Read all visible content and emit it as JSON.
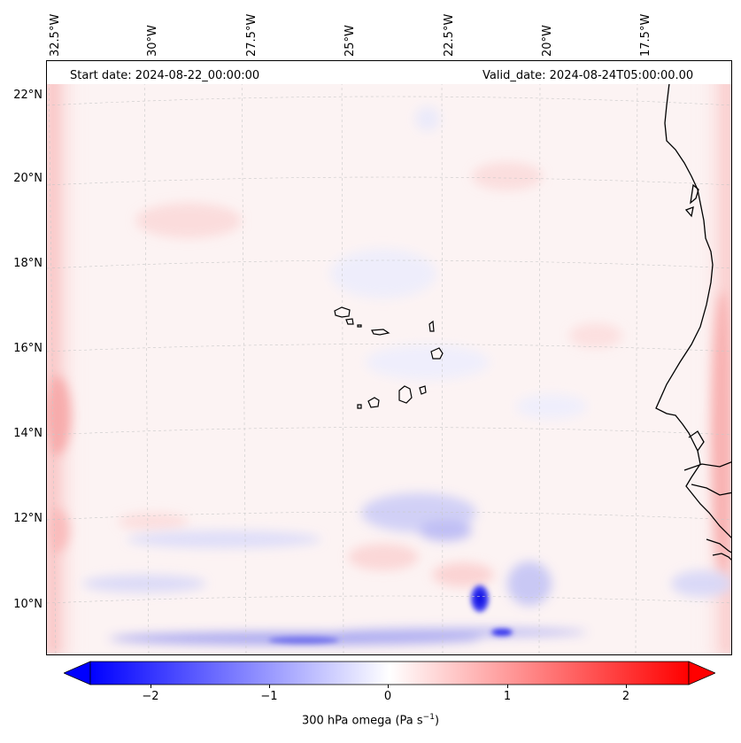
{
  "header": {
    "start_date": "Start date: 2024-08-22_00:00:00",
    "valid_date": "Valid_date: 2024-08-24T05:00:00.00"
  },
  "lon_labels": [
    "32.5°W",
    "30°W",
    "27.5°W",
    "25°W",
    "22.5°W",
    "20°W",
    "17.5°W"
  ],
  "lat_labels": [
    "22°N",
    "20°N",
    "18°N",
    "16°N",
    "14°N",
    "12°N",
    "10°N"
  ],
  "colorbar": {
    "ticks": [
      "−2",
      "−1",
      "0",
      "1",
      "2"
    ],
    "label_main": "300 hPa omega (Pa s",
    "label_sup": "−1",
    "label_close": ")",
    "vmin": -2.6,
    "vmax": 2.6,
    "cmap": "bwr",
    "colors": {
      "negative": "#0000ff",
      "zero": "#ffffff",
      "positive": "#ff0000"
    }
  },
  "map": {
    "projection": "lambert conformal",
    "extent": {
      "lon_min": -33,
      "lon_max": -15.5,
      "lat_min": 8.8,
      "lat_max": 22.8
    },
    "features": [
      "coastline",
      "gridlines"
    ],
    "field": "300 hPa omega"
  }
}
